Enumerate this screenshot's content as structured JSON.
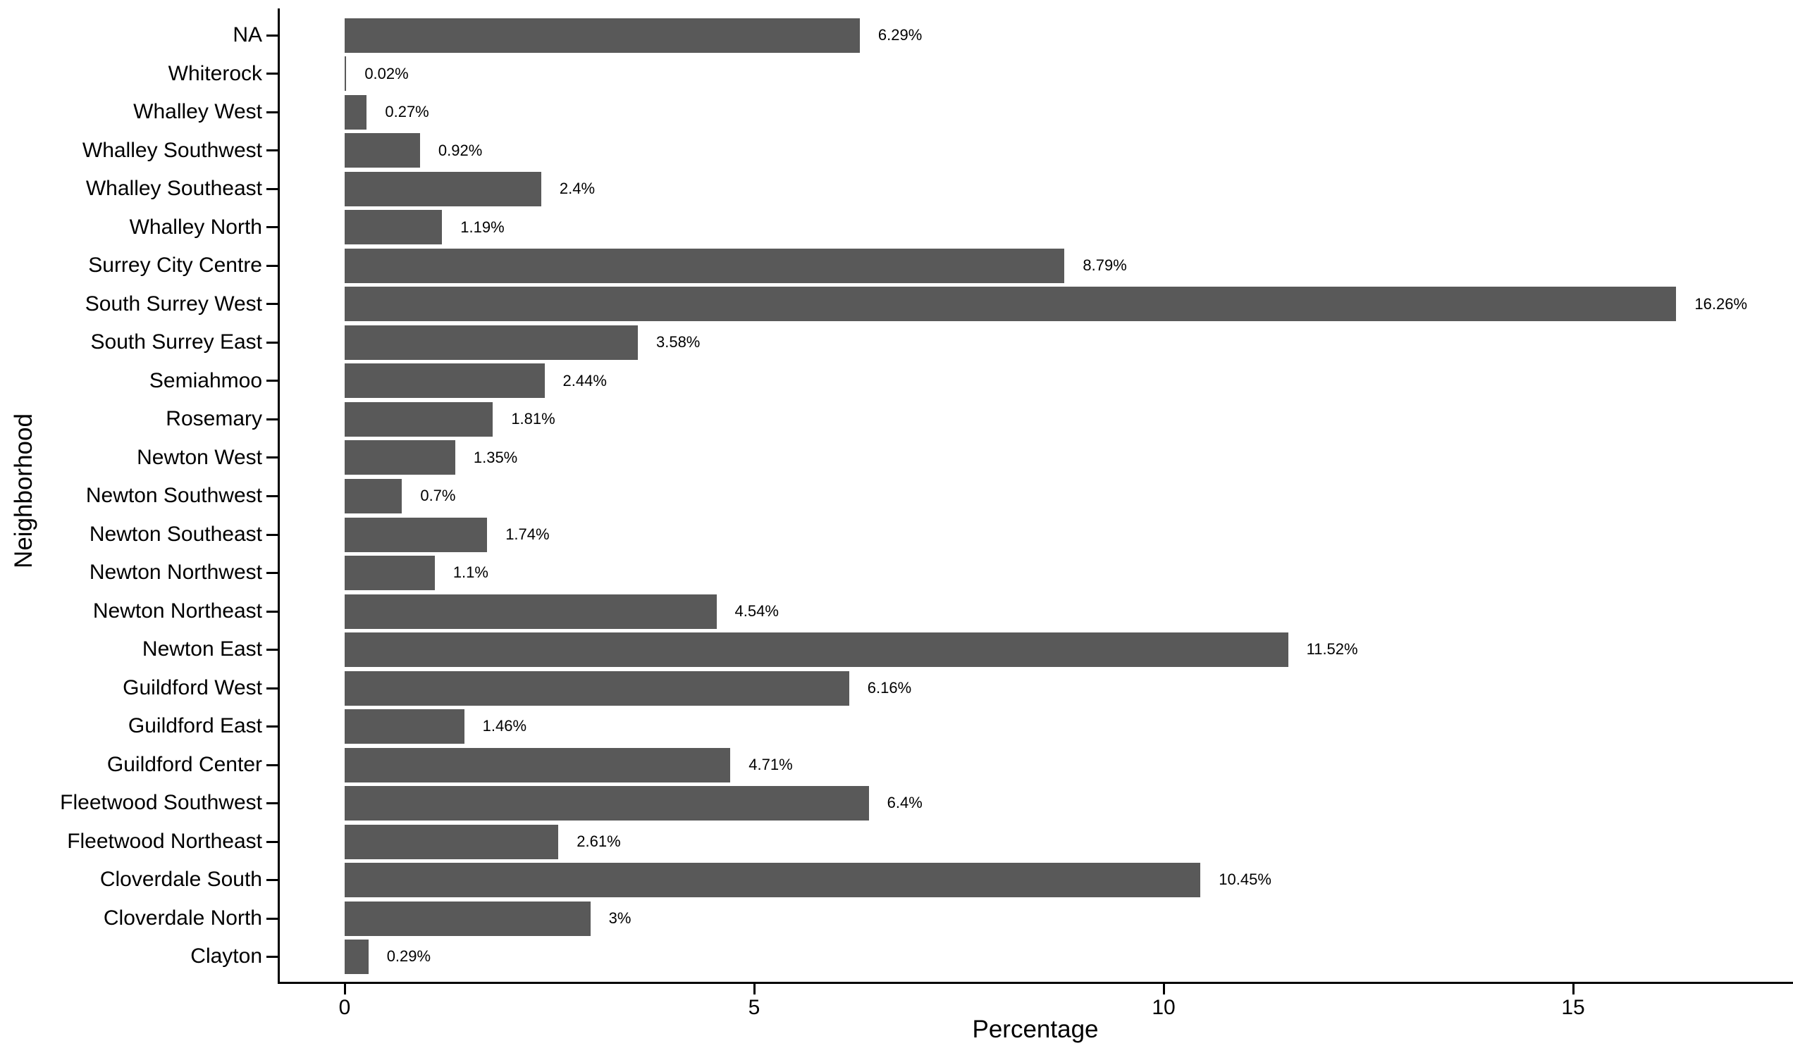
{
  "chart_data": {
    "type": "bar",
    "orientation": "horizontal",
    "title": "",
    "xlabel": "Percentage",
    "ylabel": "Neighborhood",
    "x_ticks": [
      "0",
      "5",
      "10",
      "15"
    ],
    "x_tick_values": [
      0,
      5,
      10,
      15
    ],
    "xlim": [
      0,
      17.6
    ],
    "grid": false,
    "legend": "none",
    "bar_color": "#595959",
    "axis_color": "#000000",
    "categories": [
      "NA",
      "Whiterock",
      "Whalley West",
      "Whalley Southwest",
      "Whalley Southeast",
      "Whalley North",
      "Surrey City Centre",
      "South Surrey West",
      "South Surrey East",
      "Semiahmoo",
      "Rosemary",
      "Newton West",
      "Newton Southwest",
      "Newton Southeast",
      "Newton Northwest",
      "Newton Northeast",
      "Newton East",
      "Guildford West",
      "Guildford East",
      "Guildford Center",
      "Fleetwood Southwest",
      "Fleetwood Northeast",
      "Cloverdale South",
      "Cloverdale North",
      "Clayton"
    ],
    "values": [
      6.29,
      0.02,
      0.27,
      0.92,
      2.4,
      1.19,
      8.79,
      16.26,
      3.58,
      2.44,
      1.81,
      1.35,
      0.7,
      1.74,
      1.1,
      4.54,
      11.52,
      6.16,
      1.46,
      4.71,
      6.4,
      2.61,
      10.45,
      3,
      0.29
    ],
    "value_labels": [
      "6.29%",
      "0.02%",
      "0.27%",
      "0.92%",
      "2.4%",
      "1.19%",
      "8.79%",
      "16.26%",
      "3.58%",
      "2.44%",
      "1.81%",
      "1.35%",
      "0.7%",
      "1.74%",
      "1.1%",
      "4.54%",
      "11.52%",
      "6.16%",
      "1.46%",
      "4.71%",
      "6.4%",
      "2.61%",
      "10.45%",
      "3%",
      "0.29%"
    ]
  }
}
